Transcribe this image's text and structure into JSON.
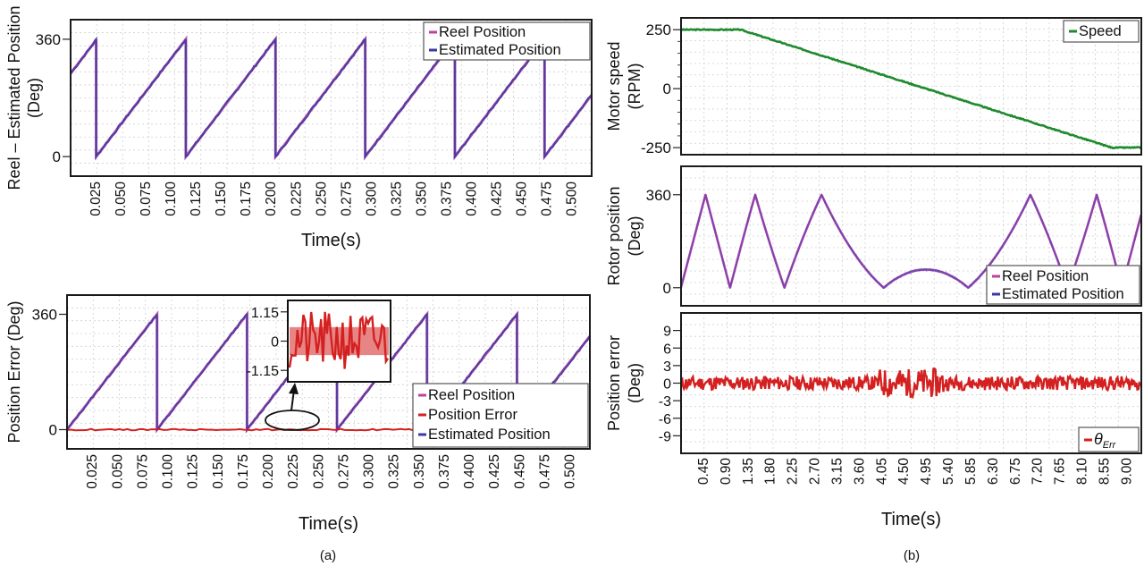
{
  "chart_data": [
    {
      "id": "a-top",
      "panel": "(a)",
      "type": "line",
      "ylabel_lines": [
        "Reel – Estimated Position",
        "(Deg)"
      ],
      "xlabel": "Time(s)",
      "xlim": [
        0.0,
        0.52
      ],
      "ylim": [
        -60,
        420
      ],
      "yticks": [
        0,
        360
      ],
      "ytick_labels": [
        "0",
        "360"
      ],
      "xticks": [
        0.025,
        0.05,
        0.075,
        0.1,
        0.125,
        0.15,
        0.175,
        0.2,
        0.225,
        0.25,
        0.275,
        0.3,
        0.325,
        0.35,
        0.375,
        0.4,
        0.425,
        0.45,
        0.475,
        0.5
      ],
      "xtick_labels": [
        "0.025",
        "0.050",
        "0.075",
        "0.100",
        "0.125",
        "0.150",
        "0.175",
        "0.200",
        "0.225",
        "0.250",
        "0.275",
        "0.300",
        "0.325",
        "0.350",
        "0.375",
        "0.400",
        "0.425",
        "0.450",
        "0.475",
        "0.500"
      ],
      "grid": true,
      "legend": {
        "placement": "top-right",
        "entries": [
          {
            "label": "Reel Position",
            "color": "#c040a0"
          },
          {
            "label": "Estimated Position",
            "color": "#3a3aa0"
          }
        ]
      },
      "sawtooth": {
        "period_s": 0.0895,
        "first_reset_s": 0.0255,
        "start_value_deg": 255,
        "max_deg": 360,
        "min_deg": 0
      },
      "series": [
        {
          "name": "Reel Position",
          "color": "#c040a0",
          "kind": "sawtooth"
        },
        {
          "name": "Estimated Position",
          "color": "#3a3aa0",
          "kind": "sawtooth"
        }
      ]
    },
    {
      "id": "a-bottom",
      "panel": "(a)",
      "type": "line",
      "ylabel_lines": [
        "Position Error (Deg)"
      ],
      "xlabel": "Time(s)",
      "xlim": [
        0.0,
        0.52
      ],
      "ylim": [
        -60,
        420
      ],
      "yticks": [
        0,
        360
      ],
      "ytick_labels": [
        "0",
        "360"
      ],
      "xticks": [
        0.025,
        0.05,
        0.075,
        0.1,
        0.125,
        0.15,
        0.175,
        0.2,
        0.225,
        0.25,
        0.275,
        0.3,
        0.325,
        0.35,
        0.375,
        0.4,
        0.425,
        0.45,
        0.475,
        0.5
      ],
      "xtick_labels": [
        "0.025",
        "0.050",
        "0.075",
        "0.100",
        "0.125",
        "0.150",
        "0.175",
        "0.200",
        "0.225",
        "0.250",
        "0.275",
        "0.300",
        "0.325",
        "0.350",
        "0.375",
        "0.400",
        "0.425",
        "0.450",
        "0.475",
        "0.500"
      ],
      "grid": true,
      "legend": {
        "placement": "bottom-right",
        "entries": [
          {
            "label": "Reel Position",
            "color": "#c040a0"
          },
          {
            "label": "Position Error",
            "color": "#d42020"
          },
          {
            "label": "Estimated Position",
            "color": "#3a3aa0"
          }
        ]
      },
      "sawtooth": {
        "period_s": 0.0895,
        "first_reset_s": 0.0895,
        "start_value_deg": 0,
        "max_deg": 360,
        "min_deg": 0
      },
      "series": [
        {
          "name": "Reel Position",
          "color": "#c040a0",
          "kind": "sawtooth"
        },
        {
          "name": "Position Error",
          "color": "#d42020",
          "kind": "noise",
          "amplitude_deg": 1.15
        },
        {
          "name": "Estimated Position",
          "color": "#3a3aa0",
          "kind": "sawtooth"
        }
      ],
      "inset": {
        "yticks": [
          1.15,
          0,
          -1.15
        ],
        "ytick_labels": [
          "1.15",
          "0",
          "-1.15"
        ],
        "ylim": [
          -1.6,
          1.6
        ],
        "series_color": "#d42020",
        "zoom_region_x": [
          0.185,
          0.255
        ]
      }
    },
    {
      "id": "b-speed",
      "panel": "(b)",
      "type": "line",
      "ylabel_lines": [
        "Motor speed",
        "(RPM)"
      ],
      "xlim": [
        0.0,
        9.3
      ],
      "ylim": [
        -280,
        300
      ],
      "yticks": [
        250,
        0,
        -250
      ],
      "ytick_labels": [
        "250",
        "0",
        "-250"
      ],
      "grid": true,
      "legend": {
        "placement": "top-right",
        "entries": [
          {
            "label": "Speed",
            "color": "#1f8a2e"
          }
        ]
      },
      "series": [
        {
          "name": "Speed",
          "color": "#1f8a2e",
          "x": [
            0.0,
            1.2,
            8.7,
            9.3
          ],
          "y": [
            250,
            250,
            -250,
            -250
          ]
        }
      ]
    },
    {
      "id": "b-rotor",
      "panel": "(b)",
      "type": "line",
      "ylabel_lines": [
        "Rotor position",
        "(Deg)"
      ],
      "xlim": [
        0.0,
        9.3
      ],
      "ylim": [
        -70,
        470
      ],
      "yticks": [
        360,
        0
      ],
      "ytick_labels": [
        "360",
        "0"
      ],
      "grid": true,
      "legend": {
        "placement": "bottom-right",
        "entries": [
          {
            "label": "Reel Position",
            "color": "#c040a0"
          },
          {
            "label": "Estimated Position",
            "color": "#3a3aa0"
          }
        ]
      },
      "speed_profile_rpm": {
        "x": [
          0.0,
          1.2,
          8.7,
          9.3
        ],
        "y": [
          250,
          250,
          -250,
          -250
        ]
      },
      "series": [
        {
          "name": "Reel Position",
          "color": "#c040a0",
          "kind": "electrical-angle-triangle"
        },
        {
          "name": "Estimated Position",
          "color": "#3a3aa0",
          "kind": "electrical-angle-triangle"
        }
      ]
    },
    {
      "id": "b-error",
      "panel": "(b)",
      "type": "line",
      "ylabel_lines": [
        "Position error",
        "(Deg)"
      ],
      "xlabel": "Time(s)",
      "xlim": [
        0.0,
        9.3
      ],
      "ylim": [
        -12,
        12
      ],
      "yticks": [
        9,
        6,
        3,
        0,
        -3,
        -6,
        -9
      ],
      "ytick_labels": [
        "9",
        "6",
        "3",
        "0",
        "-3",
        "-6",
        "-9"
      ],
      "xticks": [
        0.45,
        0.9,
        1.35,
        1.8,
        2.25,
        2.7,
        3.15,
        3.6,
        4.05,
        4.5,
        4.95,
        5.4,
        5.85,
        6.3,
        6.75,
        7.2,
        7.65,
        8.1,
        8.55,
        9.0
      ],
      "xtick_labels": [
        "0.45",
        "0.90",
        "1.35",
        "1.80",
        "2.25",
        "2.70",
        "3.15",
        "3.60",
        "4.05",
        "4.50",
        "4.95",
        "5.40",
        "5.85",
        "6.30",
        "6.75",
        "7.20",
        "7.65",
        "8.10",
        "8.55",
        "9.00"
      ],
      "grid": true,
      "legend": {
        "placement": "bottom-right",
        "entries": [
          {
            "label": "θ",
            "subscript": "Err",
            "color": "#d42020"
          }
        ]
      },
      "series": [
        {
          "name": "θErr",
          "color": "#d42020",
          "kind": "noise",
          "amplitude_deg": 1.2,
          "peak_amplitude_deg": 2.5,
          "peak_window_s": [
            4.0,
            5.3
          ]
        }
      ]
    }
  ],
  "captions": {
    "a": "(a)",
    "b": "(b)"
  }
}
